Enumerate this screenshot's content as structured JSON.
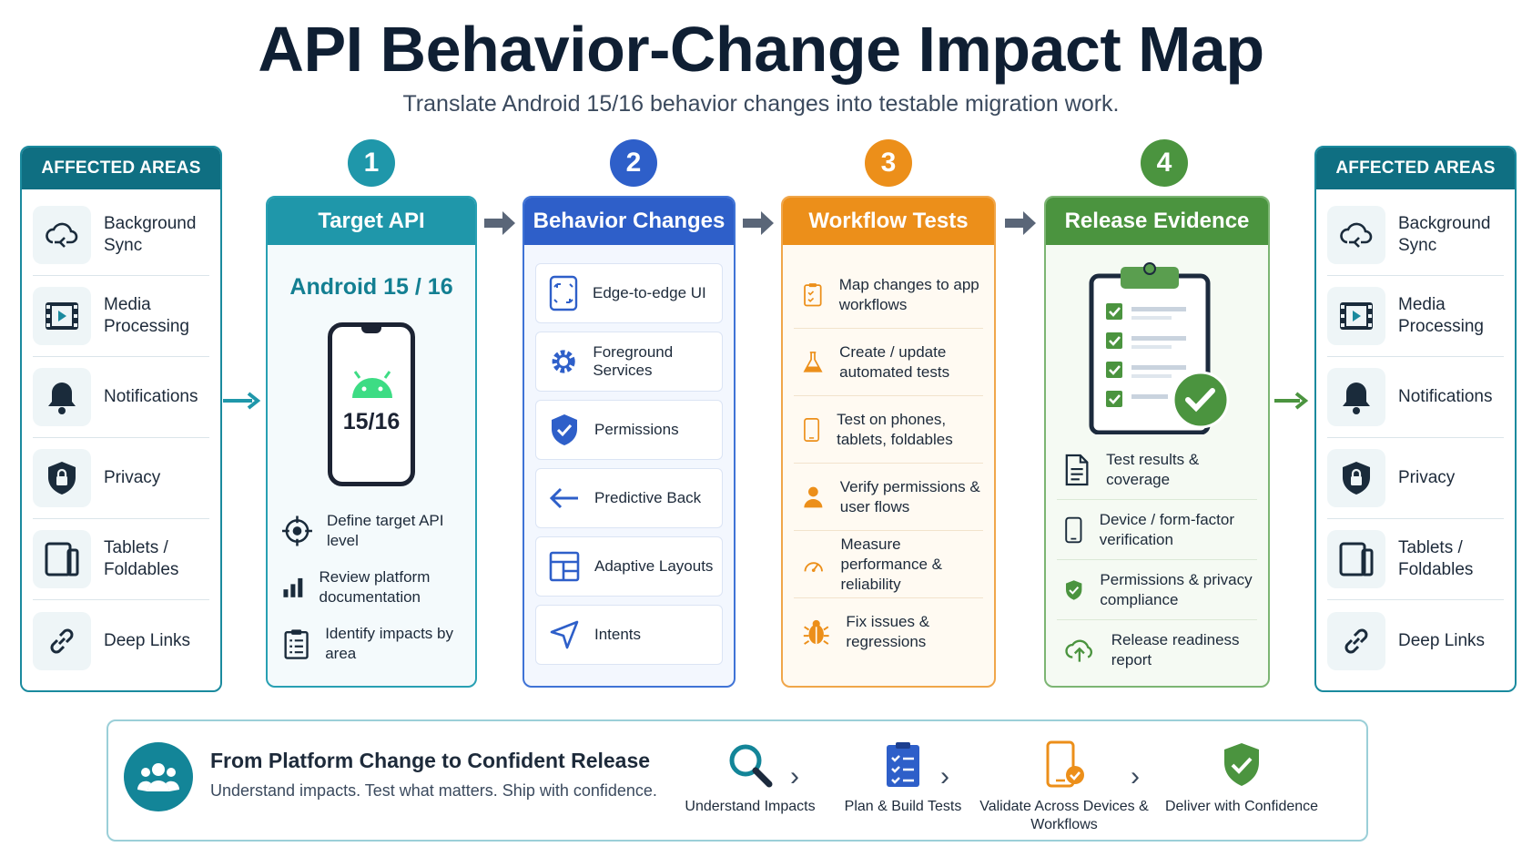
{
  "header": {
    "title": "API Behavior-Change Impact Map",
    "subtitle": "Translate Android 15/16 behavior changes into testable migration work."
  },
  "affected_areas": {
    "heading": "AFFECTED AREAS",
    "items": [
      {
        "label": "Background Sync",
        "icon": "cloud-sync-icon"
      },
      {
        "label": "Media Processing",
        "icon": "film-icon"
      },
      {
        "label": "Notifications",
        "icon": "bell-icon"
      },
      {
        "label": "Privacy",
        "icon": "shield-lock-icon"
      },
      {
        "label": "Tablets / Foldables",
        "icon": "tablet-icon"
      },
      {
        "label": "Deep Links",
        "icon": "link-icon"
      }
    ]
  },
  "steps": [
    {
      "number": "1",
      "title": "Target API",
      "android_label": "Android 15 / 16",
      "phone_text": "15/16",
      "items": [
        {
          "label": "Define target API level",
          "icon": "target-icon"
        },
        {
          "label": "Review platform documentation",
          "icon": "bar-chart-icon"
        },
        {
          "label": "Identify impacts by area",
          "icon": "clipboard-list-icon"
        }
      ]
    },
    {
      "number": "2",
      "title": "Behavior Changes",
      "items": [
        {
          "label": "Edge-to-edge UI",
          "icon": "edge-to-edge-icon"
        },
        {
          "label": "Foreground Services",
          "icon": "gear-icon"
        },
        {
          "label": "Permissions",
          "icon": "shield-check-icon"
        },
        {
          "label": "Predictive Back",
          "icon": "arrow-left-icon"
        },
        {
          "label": "Adaptive Layouts",
          "icon": "layout-icon"
        },
        {
          "label": "Intents",
          "icon": "send-icon"
        }
      ]
    },
    {
      "number": "3",
      "title": "Workflow Tests",
      "items": [
        {
          "label": "Map changes to app workflows",
          "icon": "checklist-icon"
        },
        {
          "label": "Create / update automated tests",
          "icon": "flask-icon"
        },
        {
          "label": "Test on phones, tablets, foldables",
          "icon": "phone-icon"
        },
        {
          "label": "Verify permissions & user flows",
          "icon": "user-icon"
        },
        {
          "label": "Measure performance & reliability",
          "icon": "gauge-icon"
        },
        {
          "label": "Fix issues & regressions",
          "icon": "bug-icon"
        }
      ]
    },
    {
      "number": "4",
      "title": "Release Evidence",
      "items": [
        {
          "label": "Test results & coverage",
          "icon": "document-icon"
        },
        {
          "label": "Device / form-factor verification",
          "icon": "device-icon"
        },
        {
          "label": "Permissions & privacy compliance",
          "icon": "shield-check-icon"
        },
        {
          "label": "Release readiness report",
          "icon": "cloud-upload-icon"
        }
      ]
    }
  ],
  "banner": {
    "title": "From Platform Change to Confident Release",
    "subtitle": "Understand impacts. Test what matters. Ship with confidence.",
    "steps": [
      {
        "label": "Understand Impacts",
        "icon": "magnifier-icon"
      },
      {
        "label": "Plan & Build Tests",
        "icon": "clipboard-icon"
      },
      {
        "label": "Validate Across Devices & Workflows",
        "icon": "phone-check-icon"
      },
      {
        "label": "Deliver with Confidence",
        "icon": "shield-check-icon"
      }
    ]
  },
  "colors": {
    "teal": "#1f97aa",
    "blue": "#2e5fc9",
    "orange": "#ec8f1a",
    "green": "#4b943f",
    "dark_teal": "#0f6f82"
  }
}
